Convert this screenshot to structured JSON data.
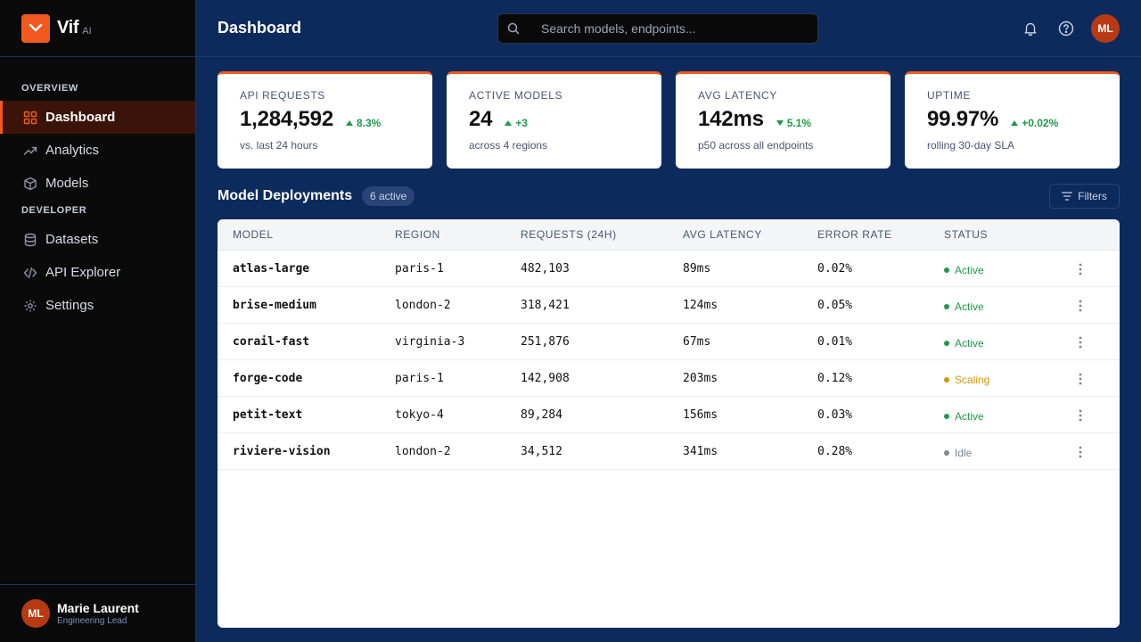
{
  "brand": {
    "name": "Vif",
    "tag": "AI"
  },
  "header": {
    "title": "Dashboard",
    "search_placeholder": "Search models, endpoints...",
    "avatar_initials": "ML"
  },
  "sidebar": {
    "sections": [
      {
        "label": "OVERVIEW"
      },
      {
        "label": "DEVELOPER"
      }
    ],
    "items": [
      {
        "label": "Dashboard",
        "icon": "grid-icon",
        "active": true
      },
      {
        "label": "Analytics",
        "icon": "trend-icon"
      },
      {
        "label": "Models",
        "icon": "cube-icon"
      },
      {
        "label": "Datasets",
        "icon": "database-icon"
      },
      {
        "label": "API Explorer",
        "icon": "code-icon"
      },
      {
        "label": "Settings",
        "icon": "settings-icon"
      }
    ],
    "user": {
      "initials": "ML",
      "name": "Marie Laurent",
      "role": "Engineering Lead"
    }
  },
  "stats": [
    {
      "label": "API REQUESTS",
      "value": "1,284,592",
      "delta": "8.3%",
      "direction": "up",
      "sub": "vs. last 24 hours"
    },
    {
      "label": "ACTIVE MODELS",
      "value": "24",
      "delta": "+3",
      "direction": "up",
      "sub": "across 4 regions"
    },
    {
      "label": "AVG LATENCY",
      "value": "142ms",
      "delta": "5.1%",
      "direction": "down",
      "sub": "p50 across all endpoints"
    },
    {
      "label": "UPTIME",
      "value": "99.97%",
      "delta": "+0.02%",
      "direction": "up",
      "sub": "rolling 30-day SLA"
    }
  ],
  "deployments": {
    "title": "Model Deployments",
    "badge": "6 active",
    "filters_label": "Filters",
    "columns": [
      "MODEL",
      "REGION",
      "REQUESTS (24H)",
      "AVG LATENCY",
      "ERROR RATE",
      "STATUS"
    ],
    "rows": [
      {
        "model": "atlas-large",
        "region": "paris-1",
        "requests": "482,103",
        "latency": "89ms",
        "error": "0.02%",
        "status": "Active"
      },
      {
        "model": "brise-medium",
        "region": "london-2",
        "requests": "318,421",
        "latency": "124ms",
        "error": "0.05%",
        "status": "Active"
      },
      {
        "model": "corail-fast",
        "region": "virginia-3",
        "requests": "251,876",
        "latency": "67ms",
        "error": "0.01%",
        "status": "Active"
      },
      {
        "model": "forge-code",
        "region": "paris-1",
        "requests": "142,908",
        "latency": "203ms",
        "error": "0.12%",
        "status": "Scaling"
      },
      {
        "model": "petit-text",
        "region": "tokyo-4",
        "requests": "89,284",
        "latency": "156ms",
        "error": "0.03%",
        "status": "Active"
      },
      {
        "model": "riviere-vision",
        "region": "london-2",
        "requests": "34,512",
        "latency": "341ms",
        "error": "0.28%",
        "status": "Idle"
      }
    ]
  },
  "colors": {
    "accent": "#f15a1f",
    "background": "#0d2a5c",
    "sidebar": "#0a0a0a",
    "status_active": "#1f9a4a",
    "status_scaling": "#d19a0c",
    "status_idle": "#808890"
  }
}
